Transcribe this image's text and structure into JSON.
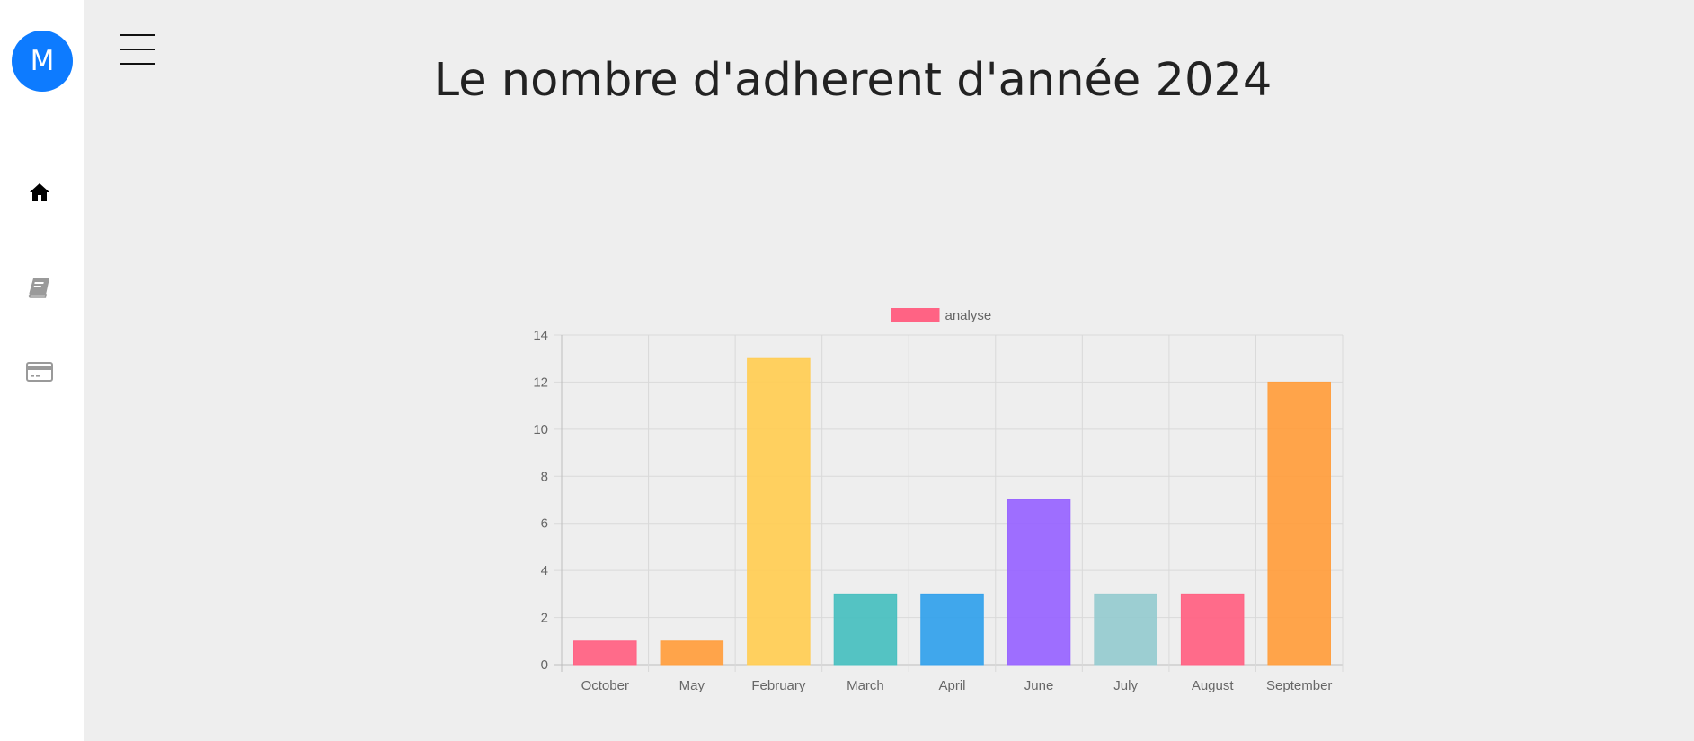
{
  "sidebar": {
    "avatar_letter": "M",
    "items": [
      {
        "icon": "home-icon"
      },
      {
        "icon": "book-icon"
      },
      {
        "icon": "credit-card-icon"
      }
    ]
  },
  "header": {
    "title": "Le nombre d'adherent d'année 2024"
  },
  "chart_data": {
    "type": "bar",
    "categories": [
      "October",
      "May",
      "February",
      "March",
      "April",
      "June",
      "July",
      "August",
      "September"
    ],
    "series": [
      {
        "name": "analyse",
        "values": [
          1,
          1,
          13,
          3,
          3,
          7,
          3,
          3,
          12
        ],
        "colors": [
          "#ff6384",
          "#ff9f40",
          "#ffcd56",
          "#4bc0c0",
          "#36a2eb",
          "#9966ff",
          "#97cbd0",
          "#ff6384",
          "#ff9f40"
        ]
      }
    ],
    "ylim": [
      0,
      14
    ],
    "yticks": [
      0,
      2,
      4,
      6,
      8,
      10,
      12,
      14
    ],
    "grid": true,
    "legend": "top-center",
    "legend_color": "#ff6384"
  }
}
